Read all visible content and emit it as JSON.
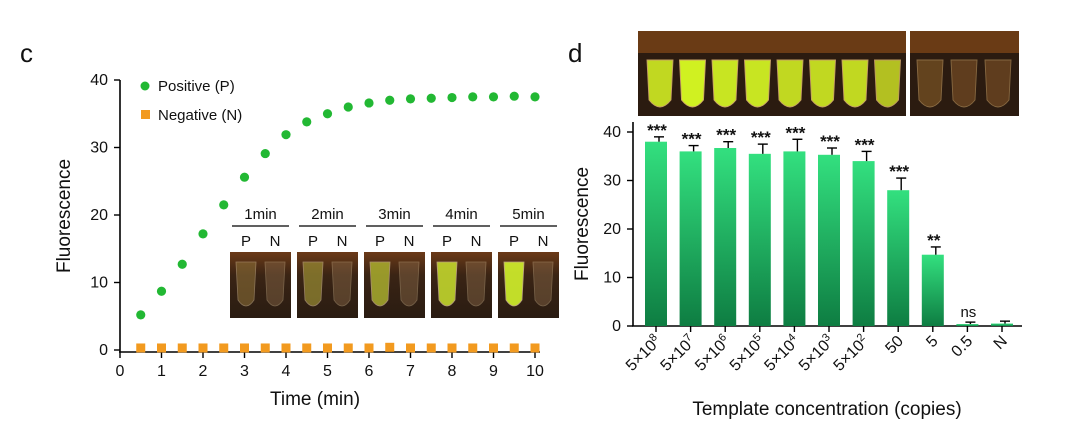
{
  "panel_c": {
    "label": "c"
  },
  "panel_d": {
    "label": "d"
  },
  "inset": {
    "times": [
      "1min",
      "2min",
      "3min",
      "4min",
      "5min"
    ],
    "p_label": "P",
    "n_label": "N",
    "intensities": [
      0.05,
      0.28,
      0.55,
      0.78,
      0.9
    ]
  },
  "chart_data": [
    {
      "type": "scatter",
      "title": "",
      "xlabel": "Time (min)",
      "ylabel": "Fluorescence",
      "xlim": [
        0,
        10
      ],
      "ylim": [
        0,
        40
      ],
      "xticks": [
        0,
        1,
        2,
        3,
        4,
        5,
        6,
        7,
        8,
        9,
        10
      ],
      "yticks": [
        0,
        10,
        20,
        30,
        40
      ],
      "legend_position": "top-left",
      "series": [
        {
          "name": "Positive (P)",
          "color": "#22b833",
          "marker": "circle",
          "x": [
            0.5,
            1,
            1.5,
            2,
            2.5,
            3,
            3.5,
            4,
            4.5,
            5,
            5.5,
            6,
            6.5,
            7,
            7.5,
            8,
            8.5,
            9,
            9.5,
            10
          ],
          "y": [
            5.2,
            8.7,
            12.7,
            17.2,
            21.5,
            25.6,
            29.1,
            31.9,
            33.8,
            35.0,
            36.0,
            36.6,
            37.0,
            37.2,
            37.3,
            37.4,
            37.5,
            37.5,
            37.6,
            37.5
          ]
        },
        {
          "name": "Negative (N)",
          "color": "#f29a1f",
          "marker": "square",
          "x": [
            0.5,
            1,
            1.5,
            2,
            2.5,
            3,
            3.5,
            4,
            4.5,
            5,
            5.5,
            6,
            6.5,
            7,
            7.5,
            8,
            8.5,
            9,
            9.5,
            10
          ],
          "y": [
            0.3,
            0.3,
            0.3,
            0.3,
            0.3,
            0.3,
            0.3,
            0.3,
            0.3,
            0.3,
            0.3,
            0.3,
            0.4,
            0.3,
            0.3,
            0.3,
            0.3,
            0.3,
            0.3,
            0.3
          ]
        }
      ]
    },
    {
      "type": "bar",
      "title": "",
      "xlabel": "Template concentration (copies)",
      "ylabel": "Fluorescence",
      "ylim": [
        0,
        40
      ],
      "yticks": [
        0,
        10,
        20,
        30,
        40
      ],
      "categories": [
        {
          "base": "5×10",
          "exp": "8"
        },
        {
          "base": "5×10",
          "exp": "7"
        },
        {
          "base": "5×10",
          "exp": "6"
        },
        {
          "base": "5×10",
          "exp": "5"
        },
        {
          "base": "5×10",
          "exp": "4"
        },
        {
          "base": "5×10",
          "exp": "3"
        },
        {
          "base": "5×10",
          "exp": "2"
        },
        {
          "base": "50",
          "exp": ""
        },
        {
          "base": "5",
          "exp": ""
        },
        {
          "base": "0.5",
          "exp": ""
        },
        {
          "base": "N",
          "exp": ""
        }
      ],
      "values": [
        38.0,
        36.0,
        36.7,
        35.5,
        36.0,
        35.3,
        34.0,
        28.0,
        14.7,
        0.4,
        0.5
      ],
      "errors": [
        1.0,
        1.2,
        1.3,
        2.0,
        2.5,
        1.4,
        2.0,
        2.5,
        1.6,
        0.4,
        0.5
      ],
      "significance": [
        "***",
        "***",
        "***",
        "***",
        "***",
        "***",
        "***",
        "***",
        "**",
        "ns",
        ""
      ],
      "bar_color_top": "#33e07f",
      "bar_color_bottom": "#0e7d42",
      "tube_photo_intensities": [
        0.85,
        0.95,
        0.9,
        0.9,
        0.85,
        0.85,
        0.85,
        0.75,
        0.05,
        0.0,
        0.0
      ]
    }
  ]
}
